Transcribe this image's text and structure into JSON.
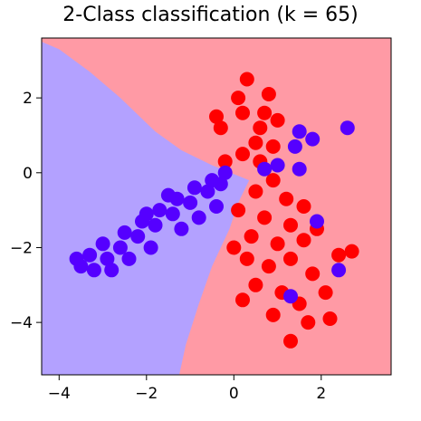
{
  "chart_data": {
    "type": "scatter",
    "title": "2-Class classification (k = 65)",
    "xlabel": "",
    "ylabel": "",
    "xlim": [
      -4.4,
      3.6
    ],
    "ylim": [
      -5.4,
      3.6
    ],
    "x_ticks": [
      -4,
      -2,
      0,
      2
    ],
    "y_ticks": [
      2,
      0,
      -2,
      -4
    ],
    "x_tick_labels": [
      "−4",
      "−2",
      "0",
      "2"
    ],
    "y_tick_labels": [
      "2",
      "0",
      "−2",
      "−4"
    ],
    "grid": false,
    "legend": "none",
    "decision_regions": [
      {
        "class": "blue",
        "color": "#b3a1ff",
        "boundary": [
          [
            -4.4,
            3.5
          ],
          [
            -4.0,
            3.3
          ],
          [
            -3.3,
            2.7
          ],
          [
            -2.6,
            2.0
          ],
          [
            -1.8,
            1.1
          ],
          [
            -1.2,
            0.6
          ],
          [
            -0.5,
            0.2
          ],
          [
            0.35,
            -0.2
          ],
          [
            0.1,
            -0.8
          ],
          [
            -0.1,
            -1.5
          ],
          [
            -0.5,
            -2.5
          ],
          [
            -0.8,
            -3.5
          ],
          [
            -1.1,
            -4.6
          ],
          [
            -1.25,
            -5.4
          ]
        ]
      },
      {
        "class": "red",
        "color": "#ff9aa5"
      }
    ],
    "series": [
      {
        "class": "red",
        "color": "#ff0000",
        "points": [
          [
            0.3,
            2.5
          ],
          [
            0.7,
            1.6
          ],
          [
            0.2,
            1.6
          ],
          [
            0.6,
            1.2
          ],
          [
            -0.3,
            1.2
          ],
          [
            1.0,
            1.4
          ],
          [
            0.5,
            0.8
          ],
          [
            0.2,
            0.5
          ],
          [
            0.9,
            0.7
          ],
          [
            -0.2,
            0.3
          ],
          [
            0.6,
            0.3
          ],
          [
            0.1,
            2.0
          ],
          [
            -0.4,
            1.5
          ],
          [
            0.8,
            2.1
          ],
          [
            0.5,
            -0.5
          ],
          [
            0.9,
            -0.2
          ],
          [
            1.2,
            -0.7
          ],
          [
            1.6,
            -0.9
          ],
          [
            0.7,
            -1.2
          ],
          [
            1.3,
            -1.4
          ],
          [
            0.4,
            -1.7
          ],
          [
            1.0,
            -1.9
          ],
          [
            1.6,
            -1.8
          ],
          [
            0.3,
            -2.3
          ],
          [
            0.8,
            -2.5
          ],
          [
            1.3,
            -2.3
          ],
          [
            1.8,
            -2.7
          ],
          [
            0.5,
            -3.0
          ],
          [
            1.1,
            -3.2
          ],
          [
            1.5,
            -3.5
          ],
          [
            0.9,
            -3.8
          ],
          [
            1.7,
            -4.0
          ],
          [
            2.1,
            -3.2
          ],
          [
            2.4,
            -2.2
          ],
          [
            2.7,
            -2.1
          ],
          [
            1.9,
            -1.5
          ],
          [
            0.2,
            -3.4
          ],
          [
            1.3,
            -4.5
          ],
          [
            2.2,
            -3.9
          ],
          [
            0.0,
            -2.0
          ],
          [
            0.1,
            -1.0
          ]
        ]
      },
      {
        "class": "blue",
        "color": "#5500ff",
        "points": [
          [
            -3.5,
            -2.5
          ],
          [
            -3.2,
            -2.6
          ],
          [
            -3.3,
            -2.2
          ],
          [
            -2.9,
            -2.3
          ],
          [
            -3.0,
            -1.9
          ],
          [
            -2.6,
            -2.0
          ],
          [
            -2.5,
            -1.6
          ],
          [
            -2.2,
            -1.7
          ],
          [
            -2.1,
            -1.3
          ],
          [
            -1.8,
            -1.4
          ],
          [
            -1.7,
            -1.0
          ],
          [
            -1.4,
            -1.1
          ],
          [
            -1.3,
            -0.7
          ],
          [
            -1.0,
            -0.8
          ],
          [
            -0.9,
            -0.4
          ],
          [
            -0.6,
            -0.5
          ],
          [
            -0.5,
            -0.2
          ],
          [
            -0.3,
            -0.3
          ],
          [
            -0.2,
            0.0
          ],
          [
            -1.9,
            -2.0
          ],
          [
            -2.4,
            -2.3
          ],
          [
            -1.2,
            -1.5
          ],
          [
            -0.8,
            -1.2
          ],
          [
            -0.4,
            -0.9
          ],
          [
            -2.8,
            -2.6
          ],
          [
            -3.6,
            -2.3
          ],
          [
            -1.5,
            -0.6
          ],
          [
            -2.0,
            -1.1
          ],
          [
            0.7,
            0.1
          ],
          [
            1.0,
            0.2
          ],
          [
            1.5,
            0.1
          ],
          [
            1.5,
            1.1
          ],
          [
            1.4,
            0.7
          ],
          [
            1.8,
            0.9
          ],
          [
            2.6,
            1.2
          ],
          [
            1.3,
            -3.3
          ],
          [
            1.9,
            -1.3
          ],
          [
            2.4,
            -2.6
          ]
        ]
      }
    ]
  }
}
